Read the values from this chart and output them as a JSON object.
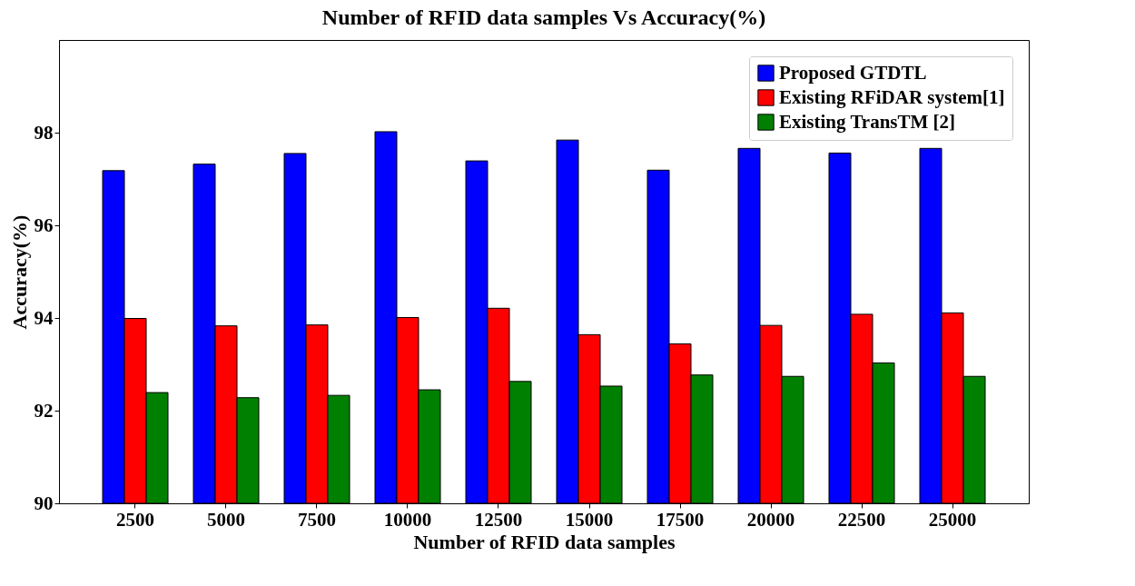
{
  "chart_data": {
    "type": "bar",
    "title": "Number of RFID data samples Vs Accuracy(%)",
    "xlabel": "Number of RFID data samples",
    "ylabel": "Accuracy(%)",
    "categories": [
      "2500",
      "5000",
      "7500",
      "10000",
      "12500",
      "15000",
      "17500",
      "20000",
      "22500",
      "25000"
    ],
    "series": [
      {
        "name": "Proposed GTDTL",
        "color": "#0000ff",
        "values": [
          97.18,
          97.32,
          97.55,
          98.02,
          97.39,
          97.84,
          97.19,
          97.66,
          97.56,
          97.66
        ]
      },
      {
        "name": "Existing RFiDAR system[1]",
        "color": "#ff0000",
        "values": [
          93.99,
          93.83,
          93.85,
          94.01,
          94.21,
          93.64,
          93.44,
          93.84,
          94.08,
          94.11
        ]
      },
      {
        "name": "Existing  TransTM [2]",
        "color": "#008000",
        "values": [
          92.39,
          92.28,
          92.33,
          92.45,
          92.63,
          92.53,
          92.77,
          92.74,
          93.03,
          92.74
        ]
      }
    ],
    "ylim": [
      90,
      100
    ],
    "yticks": [
      90,
      92,
      94,
      96,
      98
    ],
    "grid": false,
    "legend": "top right"
  }
}
